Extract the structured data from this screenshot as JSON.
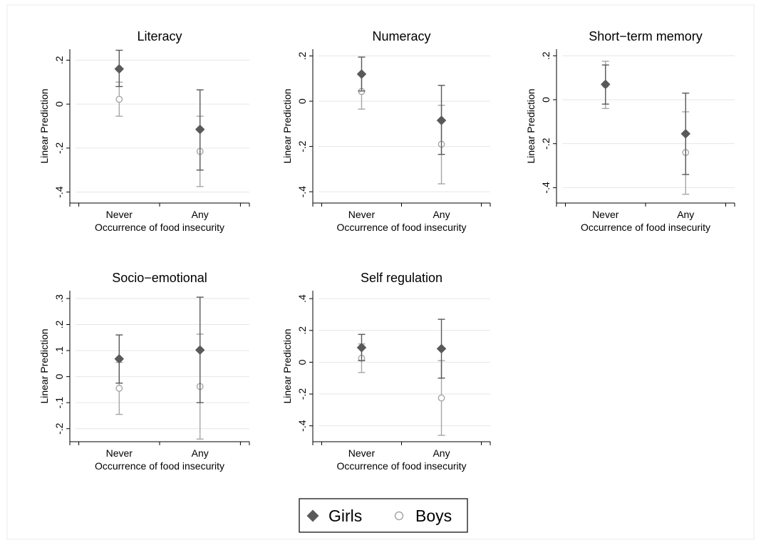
{
  "chart_data": [
    {
      "type": "scatter",
      "title": "Literacy",
      "xlabel": "Occurrence of food insecurity",
      "ylabel": "Linear Prediction",
      "categories": [
        "Never",
        "Any"
      ],
      "ylim": [
        -0.45,
        0.25
      ],
      "yticks": [
        0.2,
        0,
        -0.2,
        -0.4
      ],
      "yticklabels": [
        ".2",
        "0",
        "-.2",
        "-.4"
      ],
      "series": [
        {
          "name": "Girls",
          "values": [
            0.16,
            -0.115
          ],
          "ci_low": [
            0.08,
            -0.3
          ],
          "ci_high": [
            0.245,
            0.065
          ]
        },
        {
          "name": "Boys",
          "values": [
            0.022,
            -0.215
          ],
          "ci_low": [
            -0.055,
            -0.375
          ],
          "ci_high": [
            0.1,
            -0.055
          ]
        }
      ]
    },
    {
      "type": "scatter",
      "title": "Numeracy",
      "xlabel": "Occurrence of food insecurity",
      "ylabel": "Linear Prediction",
      "categories": [
        "Never",
        "Any"
      ],
      "ylim": [
        -0.45,
        0.23
      ],
      "yticks": [
        0.2,
        0,
        -0.2,
        -0.4
      ],
      "yticklabels": [
        ".2",
        "0",
        "-.2",
        "-.4"
      ],
      "series": [
        {
          "name": "Girls",
          "values": [
            0.12,
            -0.085
          ],
          "ci_low": [
            0.045,
            -0.235
          ],
          "ci_high": [
            0.195,
            0.07
          ]
        },
        {
          "name": "Boys",
          "values": [
            0.043,
            -0.19
          ],
          "ci_low": [
            -0.035,
            -0.365
          ],
          "ci_high": [
            0.12,
            -0.018
          ]
        }
      ]
    },
    {
      "type": "scatter",
      "title": "Short−term memory",
      "xlabel": "Occurrence of food insecurity",
      "ylabel": "Linear Prediction",
      "categories": [
        "Never",
        "Any"
      ],
      "ylim": [
        -0.47,
        0.23
      ],
      "yticks": [
        0.2,
        0,
        -0.2,
        -0.4
      ],
      "yticklabels": [
        ".2",
        "0",
        "-.2",
        "-.4"
      ],
      "series": [
        {
          "name": "Girls",
          "values": [
            0.07,
            -0.155
          ],
          "ci_low": [
            -0.02,
            -0.34
          ],
          "ci_high": [
            0.158,
            0.03
          ]
        },
        {
          "name": "Boys",
          "values": [
            0.068,
            -0.24
          ],
          "ci_low": [
            -0.04,
            -0.43
          ],
          "ci_high": [
            0.175,
            -0.055
          ]
        }
      ]
    },
    {
      "type": "scatter",
      "title": "Socio−emotional",
      "xlabel": "Occurrence of food insecurity",
      "ylabel": "Linear Prediction",
      "categories": [
        "Never",
        "Any"
      ],
      "ylim": [
        -0.25,
        0.33
      ],
      "yticks": [
        0.3,
        0.2,
        0.1,
        0,
        -0.1,
        -0.2
      ],
      "yticklabels": [
        ".3",
        ".2",
        ".1",
        "0",
        "-.1",
        "-.2"
      ],
      "series": [
        {
          "name": "Girls",
          "values": [
            0.068,
            0.102
          ],
          "ci_low": [
            -0.025,
            -0.1
          ],
          "ci_high": [
            0.16,
            0.305
          ]
        },
        {
          "name": "Boys",
          "values": [
            -0.045,
            -0.038
          ],
          "ci_low": [
            -0.145,
            -0.24
          ],
          "ci_high": [
            0.055,
            0.163
          ]
        }
      ]
    },
    {
      "type": "scatter",
      "title": "Self regulation",
      "xlabel": "Occurrence of food insecurity",
      "ylabel": "Linear Prediction",
      "categories": [
        "Never",
        "Any"
      ],
      "ylim": [
        -0.5,
        0.45
      ],
      "yticks": [
        0.4,
        0.2,
        0,
        -0.2,
        -0.4
      ],
      "yticklabels": [
        ".4",
        ".2",
        "0",
        "-.2",
        "-.4"
      ],
      "series": [
        {
          "name": "Girls",
          "values": [
            0.092,
            0.085
          ],
          "ci_low": [
            0.01,
            -0.1
          ],
          "ci_high": [
            0.175,
            0.27
          ]
        },
        {
          "name": "Boys",
          "values": [
            0.025,
            -0.225
          ],
          "ci_low": [
            -0.065,
            -0.46
          ],
          "ci_high": [
            0.115,
            0.01
          ]
        }
      ]
    }
  ],
  "legend": {
    "items": [
      {
        "label": "Girls",
        "marker": "diamond",
        "color": "#595959"
      },
      {
        "label": "Boys",
        "marker": "hollow-circle",
        "color": "#a6a6a6"
      }
    ]
  },
  "colors": {
    "girls": "#595959",
    "boys": "#a6a6a6",
    "grid": "#e6e6e6"
  }
}
